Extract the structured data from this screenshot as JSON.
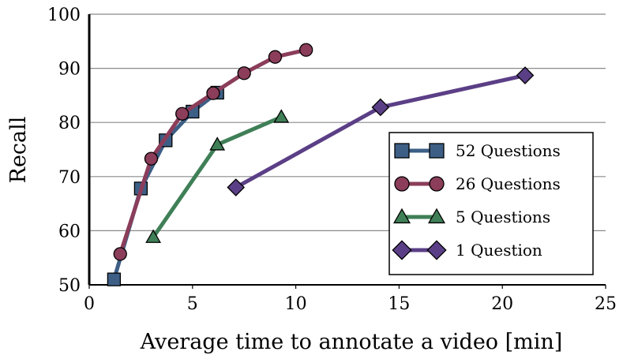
{
  "chart_data": {
    "type": "line",
    "title": "",
    "xlabel": "Average time to annotate a video [min]",
    "ylabel": "Recall",
    "xlim": [
      0,
      25
    ],
    "ylim": [
      50,
      100
    ],
    "xticks": [
      0,
      5,
      10,
      15,
      20,
      25
    ],
    "yticks": [
      50,
      60,
      70,
      80,
      90,
      100
    ],
    "grid": "horizontal",
    "legend_position": "lower-right",
    "series": [
      {
        "name": "52 Questions",
        "color": "#3d5f86",
        "marker": "square",
        "x": [
          1.2,
          2.5,
          3.7,
          5.0,
          6.2
        ],
        "y": [
          51,
          67.8,
          76.7,
          82,
          85.5
        ]
      },
      {
        "name": "26 Questions",
        "color": "#8b3d5a",
        "marker": "circle",
        "x": [
          1.5,
          3.0,
          4.5,
          6.0,
          7.5,
          9.0,
          10.5
        ],
        "y": [
          55.7,
          73.3,
          81.6,
          85.4,
          89.1,
          92.1,
          93.4
        ]
      },
      {
        "name": "5 Questions",
        "color": "#3f7f57",
        "marker": "triangle",
        "x": [
          3.1,
          6.2,
          9.3
        ],
        "y": [
          58.8,
          75.9,
          81
        ]
      },
      {
        "name": "1 Question",
        "color": "#5b3f86",
        "marker": "diamond",
        "x": [
          7.1,
          14.1,
          21.1
        ],
        "y": [
          68,
          82.8,
          88.7
        ]
      }
    ]
  }
}
